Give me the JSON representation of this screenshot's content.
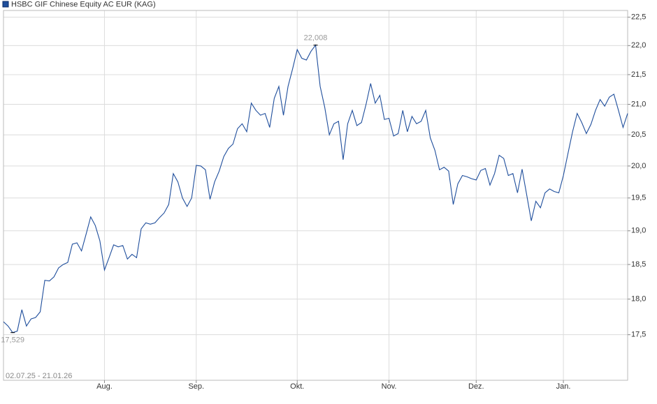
{
  "chart_data": {
    "type": "line",
    "log_scale": true,
    "grid": true,
    "period": "02.07.25 - 21.01.26",
    "series": [
      {
        "name": "HSBC GIF Chinese Equity AC EUR (KAG)",
        "color": "#1f4e9c",
        "values": [
          17.68,
          17.62,
          17.529,
          17.55,
          17.85,
          17.62,
          17.72,
          17.74,
          17.82,
          18.27,
          18.26,
          18.32,
          18.45,
          18.5,
          18.53,
          18.8,
          18.82,
          18.7,
          18.95,
          19.21,
          19.08,
          18.85,
          18.42,
          18.6,
          18.79,
          18.76,
          18.78,
          18.58,
          18.65,
          18.6,
          19.03,
          19.12,
          19.1,
          19.12,
          19.2,
          19.27,
          19.4,
          19.88,
          19.75,
          19.5,
          19.37,
          19.5,
          20.01,
          20.0,
          19.94,
          19.48,
          19.75,
          19.92,
          20.15,
          20.28,
          20.35,
          20.6,
          20.68,
          20.55,
          21.02,
          20.9,
          20.82,
          20.85,
          20.62,
          21.1,
          21.3,
          20.82,
          21.3,
          21.6,
          21.93,
          21.78,
          21.75,
          21.9,
          22.008,
          21.3,
          20.95,
          20.5,
          20.68,
          20.72,
          20.1,
          20.68,
          20.9,
          20.65,
          20.7,
          21.0,
          21.35,
          21.02,
          21.15,
          20.75,
          20.77,
          20.48,
          20.52,
          20.9,
          20.55,
          20.8,
          20.68,
          20.72,
          20.9,
          20.45,
          20.25,
          19.94,
          19.98,
          19.92,
          19.4,
          19.72,
          19.85,
          19.83,
          19.8,
          19.78,
          19.93,
          19.96,
          19.7,
          19.88,
          20.17,
          20.12,
          19.85,
          19.88,
          19.58,
          19.95,
          19.55,
          19.15,
          19.45,
          19.35,
          19.58,
          19.64,
          19.6,
          19.58,
          19.85,
          20.2,
          20.55,
          20.85,
          20.7,
          20.52,
          20.67,
          20.9,
          21.08,
          20.97,
          21.12,
          21.17,
          20.9,
          20.62,
          20.85
        ]
      }
    ],
    "categories": [
      null,
      null,
      null,
      null,
      null,
      null,
      null,
      null,
      null,
      null,
      null,
      null,
      null,
      null,
      null,
      null,
      null,
      null,
      null,
      null,
      null,
      null,
      "Aug.",
      null,
      null,
      null,
      null,
      null,
      null,
      null,
      null,
      null,
      null,
      null,
      null,
      null,
      null,
      null,
      null,
      null,
      null,
      null,
      "Sep.",
      null,
      null,
      null,
      null,
      null,
      null,
      null,
      null,
      null,
      null,
      null,
      null,
      null,
      null,
      null,
      null,
      null,
      null,
      null,
      null,
      null,
      "Okt.",
      null,
      null,
      null,
      null,
      null,
      null,
      null,
      null,
      null,
      null,
      null,
      null,
      null,
      null,
      null,
      null,
      null,
      null,
      null,
      "Nov.",
      null,
      null,
      null,
      null,
      null,
      null,
      null,
      null,
      null,
      null,
      null,
      null,
      null,
      null,
      null,
      null,
      null,
      null,
      "Dez.",
      null,
      null,
      null,
      null,
      null,
      null,
      null,
      null,
      null,
      null,
      null,
      null,
      null,
      null,
      null,
      null,
      null,
      null,
      "Jan.",
      null,
      null,
      null,
      null,
      null,
      null,
      null,
      null,
      null,
      null,
      null,
      null,
      null,
      null
    ],
    "annotations": [
      {
        "value": 22.008,
        "label": "22,008"
      },
      {
        "value": 17.529,
        "label": "17,529"
      }
    ],
    "ylim": [
      16.88,
      22.62
    ],
    "yticks": [
      {
        "value": 17.5,
        "label": "17,5"
      },
      {
        "value": 18,
        "label": "18,0"
      },
      {
        "value": 18.5,
        "label": "18,5"
      },
      {
        "value": 19,
        "label": "19,0"
      },
      {
        "value": 19.5,
        "label": "19,5"
      },
      {
        "value": 20,
        "label": "20,0"
      },
      {
        "value": 20.5,
        "label": "20,5"
      },
      {
        "value": 21,
        "label": "21,0"
      },
      {
        "value": 21.5,
        "label": "21,5"
      },
      {
        "value": 22,
        "label": "22,0"
      },
      {
        "value": 22.5,
        "label": "22,5"
      }
    ]
  }
}
